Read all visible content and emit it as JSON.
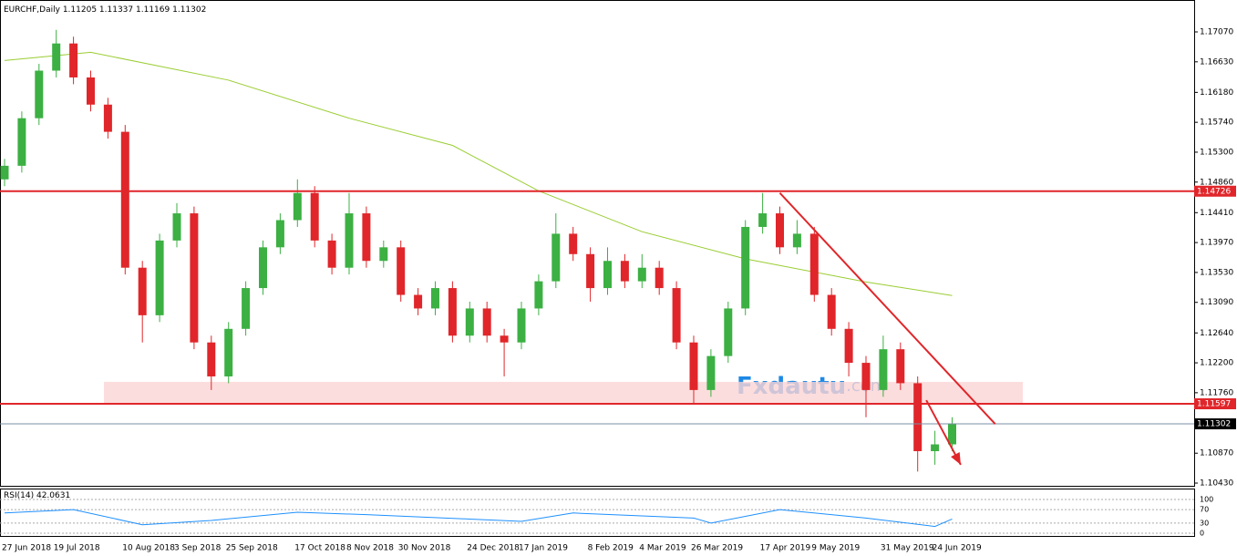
{
  "chart_data": {
    "type": "candlestick",
    "title": "EURCHF,Daily",
    "header_ohlc": [
      1.11205,
      1.11337,
      1.11169,
      1.11302
    ],
    "categories": [
      "27 Jun 2018",
      null,
      null,
      "19 Jul 2018",
      null,
      null,
      null,
      "10 Aug 2018",
      null,
      null,
      "3 Sep 2018",
      null,
      null,
      "25 Sep 2018",
      null,
      null,
      null,
      "17 Oct 2018",
      null,
      null,
      "8 Nov 2018",
      null,
      null,
      "30 Nov 2018",
      null,
      null,
      null,
      "24 Dec 2018",
      null,
      null,
      "17 Jan 2019",
      null,
      null,
      null,
      "8 Feb 2019",
      null,
      null,
      "4 Mar 2019",
      null,
      null,
      "26 Mar 2019",
      null,
      null,
      null,
      "17 Apr 2019",
      null,
      null,
      "9 May 2019",
      null,
      null,
      null,
      "31 May 2019",
      null,
      null,
      "24 Jun 2019",
      null
    ],
    "open": [
      1.149,
      1.151,
      1.158,
      1.165,
      1.169,
      1.164,
      1.16,
      1.156,
      1.136,
      1.129,
      1.14,
      1.144,
      1.125,
      1.12,
      1.127,
      1.133,
      1.139,
      1.143,
      1.147,
      1.14,
      1.136,
      1.144,
      1.137,
      1.139,
      1.132,
      1.13,
      1.133,
      1.126,
      1.13,
      1.126,
      1.125,
      1.13,
      1.134,
      1.141,
      1.138,
      1.133,
      1.137,
      1.134,
      1.136,
      1.133,
      1.125,
      1.118,
      1.123,
      1.13,
      1.142,
      1.144,
      1.139,
      1.141,
      1.132,
      1.127,
      1.122,
      1.118,
      1.124,
      1.119,
      1.109,
      1.11
    ],
    "high": [
      1.152,
      1.159,
      1.166,
      1.171,
      1.17,
      1.165,
      1.161,
      1.157,
      1.137,
      1.141,
      1.1455,
      1.145,
      1.126,
      1.128,
      1.134,
      1.14,
      1.144,
      1.149,
      1.148,
      1.141,
      1.147,
      1.145,
      1.14,
      1.14,
      1.133,
      1.134,
      1.134,
      1.131,
      1.131,
      1.127,
      1.131,
      1.135,
      1.144,
      1.142,
      1.139,
      1.139,
      1.138,
      1.138,
      1.137,
      1.134,
      1.126,
      1.124,
      1.131,
      1.143,
      1.147,
      1.145,
      1.143,
      1.142,
      1.133,
      1.128,
      1.123,
      1.126,
      1.125,
      1.12,
      1.112,
      1.114
    ],
    "low": [
      1.148,
      1.15,
      1.157,
      1.164,
      1.163,
      1.159,
      1.155,
      1.135,
      1.125,
      1.128,
      1.139,
      1.124,
      1.118,
      1.119,
      1.126,
      1.132,
      1.138,
      1.142,
      1.139,
      1.135,
      1.135,
      1.136,
      1.136,
      1.131,
      1.129,
      1.129,
      1.125,
      1.125,
      1.125,
      1.12,
      1.124,
      1.129,
      1.133,
      1.137,
      1.131,
      1.132,
      1.133,
      1.133,
      1.132,
      1.124,
      1.116,
      1.117,
      1.122,
      1.129,
      1.141,
      1.138,
      1.138,
      1.131,
      1.126,
      1.12,
      1.114,
      1.117,
      1.118,
      1.106,
      1.107,
      1.109
    ],
    "close": [
      1.151,
      1.158,
      1.165,
      1.169,
      1.164,
      1.16,
      1.156,
      1.136,
      1.129,
      1.14,
      1.144,
      1.125,
      1.12,
      1.127,
      1.133,
      1.139,
      1.143,
      1.147,
      1.14,
      1.136,
      1.144,
      1.137,
      1.139,
      1.132,
      1.13,
      1.133,
      1.126,
      1.13,
      1.126,
      1.125,
      1.13,
      1.134,
      1.141,
      1.138,
      1.133,
      1.137,
      1.134,
      1.136,
      1.133,
      1.125,
      1.118,
      1.123,
      1.13,
      1.142,
      1.144,
      1.139,
      1.141,
      1.132,
      1.127,
      1.122,
      1.118,
      1.124,
      1.119,
      1.109,
      1.11,
      1.113
    ],
    "up_color": "#3cb043",
    "down_color": "#e0262a",
    "ylim": [
      1.1039,
      1.17486
    ],
    "yticks": [
      {
        "value": 1.1707,
        "label": "1.17070"
      },
      {
        "value": 1.1663,
        "label": "1.16630"
      },
      {
        "value": 1.1618,
        "label": "1.16180"
      },
      {
        "value": 1.1574,
        "label": "1.15740"
      },
      {
        "value": 1.153,
        "label": "1.15300"
      },
      {
        "value": 1.1486,
        "label": "1.14860"
      },
      {
        "value": 1.1441,
        "label": "1.14410"
      },
      {
        "value": 1.1397,
        "label": "1.13970"
      },
      {
        "value": 1.1353,
        "label": "1.13530"
      },
      {
        "value": 1.1309,
        "label": "1.13090"
      },
      {
        "value": 1.1264,
        "label": "1.12640"
      },
      {
        "value": 1.122,
        "label": "1.12200"
      },
      {
        "value": 1.1176,
        "label": "1.11760"
      },
      {
        "value": 1.1087,
        "label": "1.10870"
      },
      {
        "value": 1.1043,
        "label": "1.10430"
      }
    ],
    "ma": {
      "x": [
        0,
        5,
        13,
        20,
        26,
        31,
        37,
        43,
        50,
        55
      ],
      "values": [
        1.1665,
        1.1677,
        1.1636,
        1.158,
        1.154,
        1.1473,
        1.1413,
        1.1373,
        1.1339,
        1.1319
      ],
      "color": "#9acd32"
    },
    "levels": [
      1.14726,
      1.11597
    ],
    "level_color": "#e0262a",
    "current_price": 1.11302,
    "zone": [
      1.1159,
      1.1192
    ],
    "trendline": {
      "x": [
        45,
        57.5
      ],
      "values": [
        1.147,
        1.113
      ]
    },
    "arrow": {
      "x": [
        53.5,
        55.5
      ],
      "values": [
        1.1165,
        1.107
      ]
    },
    "watermark": [
      "Fxdautu",
      ".com"
    ],
    "rsi": {
      "title": "RSI(14)",
      "value": 42.0631,
      "x": [
        0,
        4,
        8,
        12,
        17,
        21,
        27,
        30,
        33,
        40,
        41,
        45,
        50,
        54,
        55
      ],
      "values": [
        60,
        70,
        25,
        38,
        62,
        55,
        42,
        35,
        60,
        45,
        30,
        70,
        45,
        20,
        42
      ],
      "ylim": [
        0,
        100
      ],
      "yticks": [
        100,
        70,
        30,
        0
      ],
      "color": "#1e90ff"
    }
  }
}
